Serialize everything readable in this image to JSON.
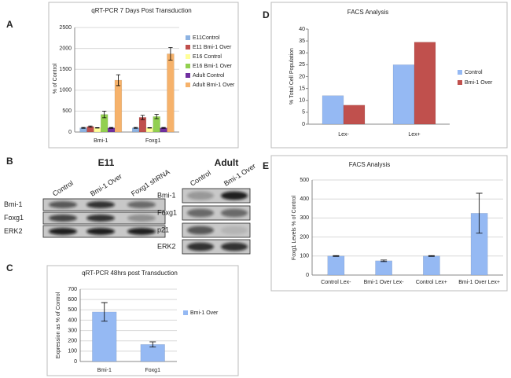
{
  "chart_data": [
    {
      "type": "bar",
      "panel_label": "A",
      "title": "qRT-PCR 7 Days Post Transduction",
      "y_label": "% of Control",
      "categories": [
        "Bmi-1",
        "Foxg1"
      ],
      "series": [
        {
          "name": "E11Control",
          "color": "#8db3e2",
          "values": [
            100,
            100
          ],
          "errors": [
            10,
            10
          ]
        },
        {
          "name": "E11 Bmi-1 Over",
          "color": "#c0504d",
          "values": [
            130,
            350
          ],
          "errors": [
            15,
            50
          ]
        },
        {
          "name": "E16 Control",
          "color": "#ffff99",
          "values": [
            100,
            100
          ],
          "errors": [
            5,
            5
          ]
        },
        {
          "name": "E16 Bmi-1 Over",
          "color": "#92d050",
          "values": [
            420,
            370
          ],
          "errors": [
            80,
            50
          ]
        },
        {
          "name": "Adult Control",
          "color": "#7030a0",
          "values": [
            100,
            100
          ],
          "errors": [
            10,
            10
          ]
        },
        {
          "name": "Adult Bmi-1 Over",
          "color": "#f6b26b",
          "values": [
            1240,
            1870
          ],
          "errors": [
            130,
            150
          ]
        }
      ],
      "ylim": [
        0,
        2500
      ],
      "yticks": [
        0,
        500,
        1000,
        1500,
        2000,
        2500
      ],
      "grid": true,
      "legend": "right"
    },
    {
      "type": "bar",
      "panel_label": "C",
      "title": "qRT-PCR 48hrs post Transduction",
      "y_label": "Expression as % of Control",
      "categories": [
        "Bmi-1",
        "Foxg1"
      ],
      "series": [
        {
          "name": "Bmi-1 Over",
          "color": "#95b9f3",
          "values": [
            480,
            165
          ],
          "errors": [
            90,
            25
          ]
        }
      ],
      "ylim": [
        0,
        700
      ],
      "yticks": [
        0,
        100,
        200,
        300,
        400,
        500,
        600,
        700
      ],
      "grid": true,
      "legend": "right"
    },
    {
      "type": "bar",
      "panel_label": "D",
      "title": "FACS Analysis",
      "y_label": "% Total Cell Population",
      "categories": [
        "Lex-",
        "Lex+"
      ],
      "series": [
        {
          "name": "Control",
          "color": "#95b9f3",
          "values": [
            12,
            25
          ]
        },
        {
          "name": "Bmi-1 Over",
          "color": "#c0504d",
          "values": [
            8,
            34.5
          ]
        }
      ],
      "ylim": [
        0,
        40
      ],
      "yticks": [
        0,
        5,
        10,
        15,
        20,
        25,
        30,
        35,
        40
      ],
      "grid": false,
      "legend": "right"
    },
    {
      "type": "bar",
      "panel_label": "E",
      "title": "FACS Analysis",
      "y_label": "Foxg1 Levels % of Control",
      "categories": [
        "Control Lex-",
        "Bmi-1 Over Lex-",
        "Control Lex+",
        "Bmi-1 Over Lex+"
      ],
      "series": [
        {
          "color": "#95b9f3",
          "values": [
            100,
            75,
            100,
            325
          ],
          "errors": [
            2,
            4,
            2,
            105
          ]
        }
      ],
      "ylim": [
        0,
        500
      ],
      "yticks": [
        0,
        100,
        200,
        300,
        400,
        500
      ],
      "grid": true
    }
  ],
  "blot": {
    "panel_label": "B",
    "panels": [
      {
        "title": "E11",
        "columns": [
          "Control",
          "Bmi-1 Over",
          "Foxg1 shRNA"
        ],
        "rows": [
          "Bmi-1",
          "Foxg1",
          "ERK2"
        ]
      },
      {
        "title": "Adult",
        "columns": [
          "Control",
          "Bmi-1 Over"
        ],
        "rows": [
          "Bmi-1",
          "Foxg1",
          "p21",
          "ERK2"
        ]
      }
    ]
  }
}
